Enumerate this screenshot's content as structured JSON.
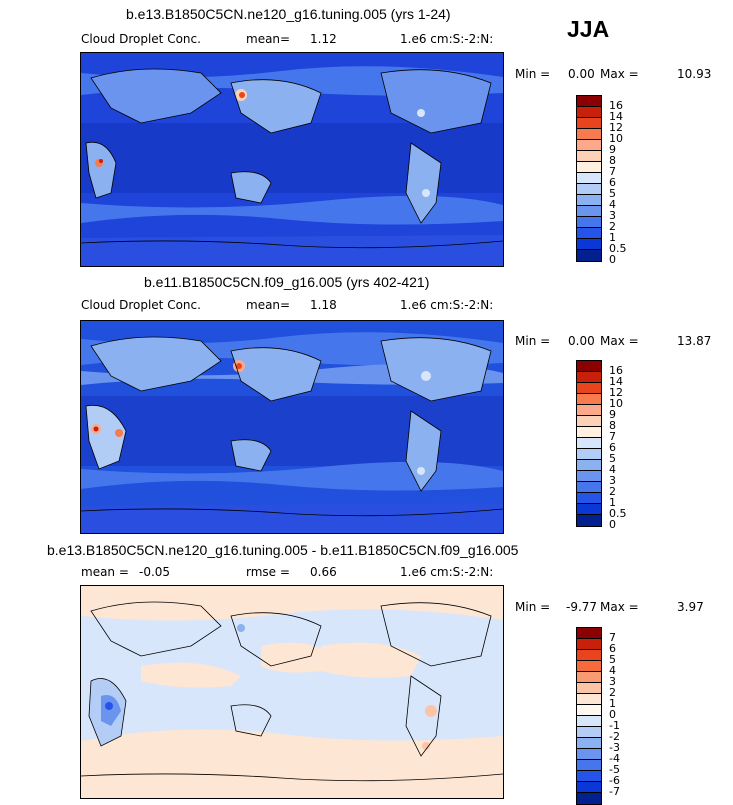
{
  "season": "JJA",
  "panels": [
    {
      "title": "b.e13.B1850C5CN.ne120_g16.tuning.005 (yrs 1-24)",
      "left_label": "Cloud Droplet Conc.",
      "stat_label": "mean=",
      "stat_value": "1.12",
      "units": "1.e6 cm:S:-2:N:",
      "min_label": "Min =",
      "min_value": "0.00",
      "max_label": "Max =",
      "max_value": "10.93",
      "colorbar_labels": [
        "16",
        "14",
        "12",
        "10",
        "9",
        "8",
        "7",
        "6",
        "5",
        "4",
        "3",
        "2",
        "1",
        "0.5",
        "0"
      ],
      "colorbar_colors": [
        "#8b0000",
        "#c8200a",
        "#e8451e",
        "#f87a4f",
        "#fca88a",
        "#fdd0b8",
        "#fff0e0",
        "#d7e6fb",
        "#b1cdf6",
        "#8cb1f1",
        "#6a94ee",
        "#4676ec",
        "#2455e8",
        "#0b37d6",
        "#03208f"
      ]
    },
    {
      "title": "b.e11.B1850C5CN.f09_g16.005 (yrs 402-421)",
      "left_label": "Cloud Droplet Conc.",
      "stat_label": "mean=",
      "stat_value": "1.18",
      "units": "1.e6 cm:S:-2:N:",
      "min_label": "Min =",
      "min_value": "0.00",
      "max_label": "Max =",
      "max_value": "13.87",
      "colorbar_labels": [
        "16",
        "14",
        "12",
        "10",
        "9",
        "8",
        "7",
        "6",
        "5",
        "4",
        "3",
        "2",
        "1",
        "0.5",
        "0"
      ],
      "colorbar_colors": [
        "#8b0000",
        "#c8200a",
        "#e8451e",
        "#f87a4f",
        "#fca88a",
        "#fdd0b8",
        "#fff0e0",
        "#d7e6fb",
        "#b1cdf6",
        "#8cb1f1",
        "#6a94ee",
        "#4676ec",
        "#2455e8",
        "#0b37d6",
        "#03208f"
      ]
    },
    {
      "title": "b.e13.B1850C5CN.ne120_g16.tuning.005 - b.e11.B1850C5CN.f09_g16.005",
      "left_label": "mean =",
      "left_value": "-0.05",
      "stat_label": "rmse =",
      "stat_value": "0.66",
      "units": "1.e6 cm:S:-2:N:",
      "min_label": "Min =",
      "min_value": "-9.77",
      "max_label": "Max =",
      "max_value": "3.97",
      "colorbar_labels": [
        "7",
        "6",
        "5",
        "4",
        "3",
        "2",
        "1",
        "0",
        "-1",
        "-2",
        "-3",
        "-4",
        "-5",
        "-6",
        "-7"
      ],
      "colorbar_colors": [
        "#8b0000",
        "#c8200a",
        "#e8451e",
        "#f66a3e",
        "#f99a72",
        "#fcc4a6",
        "#fde6d4",
        "#fff8f0",
        "#d8e6fb",
        "#b3cdf6",
        "#8cb1f1",
        "#6a94ee",
        "#4676ec",
        "#2455e8",
        "#0b37d6",
        "#03208f"
      ]
    }
  ]
}
